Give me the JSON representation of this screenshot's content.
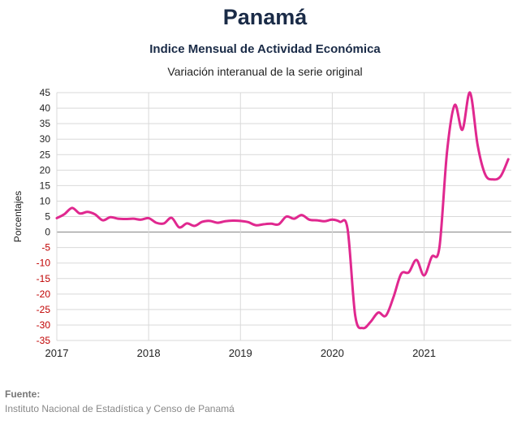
{
  "title": "Panamá",
  "subtitle": "Indice Mensual de  Actividad Económica",
  "subtitle2": "Variación interanual de la serie original",
  "source": {
    "label": "Fuente:",
    "text": "Instituto Nacional de Estadística y Censo de Panamá"
  },
  "colors": {
    "line": "#e0288f",
    "negative_tick": "#c00000",
    "positive_tick": "#222222",
    "grid": "#d9d9d9"
  },
  "chart_data": {
    "type": "line",
    "title": "Panamá",
    "ylabel": "Porcentajes",
    "xlabel": "",
    "ylim": [
      -35,
      45
    ],
    "ytick_step": 5,
    "xlim": [
      2017,
      2021.95
    ],
    "xticks": [
      "2017",
      "2018",
      "2019",
      "2020",
      "2021"
    ],
    "grid": true,
    "series": [
      {
        "name": "",
        "x": [
          "2017-01",
          "2017-02",
          "2017-03",
          "2017-04",
          "2017-05",
          "2017-06",
          "2017-07",
          "2017-08",
          "2017-09",
          "2017-10",
          "2017-11",
          "2017-12",
          "2018-01",
          "2018-02",
          "2018-03",
          "2018-04",
          "2018-05",
          "2018-06",
          "2018-07",
          "2018-08",
          "2018-09",
          "2018-10",
          "2018-11",
          "2018-12",
          "2019-01",
          "2019-02",
          "2019-03",
          "2019-04",
          "2019-05",
          "2019-06",
          "2019-07",
          "2019-08",
          "2019-09",
          "2019-10",
          "2019-11",
          "2019-12",
          "2020-01",
          "2020-02",
          "2020-03",
          "2020-04",
          "2020-05",
          "2020-06",
          "2020-07",
          "2020-08",
          "2020-09",
          "2020-10",
          "2020-11",
          "2020-12",
          "2021-01",
          "2021-02",
          "2021-03",
          "2021-04",
          "2021-05",
          "2021-06",
          "2021-07",
          "2021-08",
          "2021-09",
          "2021-10",
          "2021-11",
          "2021-12"
        ],
        "values": [
          4.5,
          5.8,
          7.8,
          6.0,
          6.5,
          5.7,
          3.8,
          4.8,
          4.3,
          4.2,
          4.3,
          4.0,
          4.5,
          3.0,
          2.8,
          4.6,
          1.5,
          2.8,
          2.0,
          3.3,
          3.6,
          3.0,
          3.5,
          3.7,
          3.6,
          3.2,
          2.2,
          2.5,
          2.7,
          2.5,
          5.0,
          4.3,
          5.5,
          4.0,
          3.8,
          3.5,
          4.0,
          3.3,
          1.0,
          -27.0,
          -31.0,
          -29.0,
          -26.0,
          -27.0,
          -21.0,
          -13.5,
          -13.0,
          -9.0,
          -14.0,
          -8.0,
          -5.0,
          26.0,
          41.0,
          33.0,
          45.0,
          28.0,
          18.5,
          17.0,
          18.0,
          23.5
        ]
      }
    ]
  }
}
